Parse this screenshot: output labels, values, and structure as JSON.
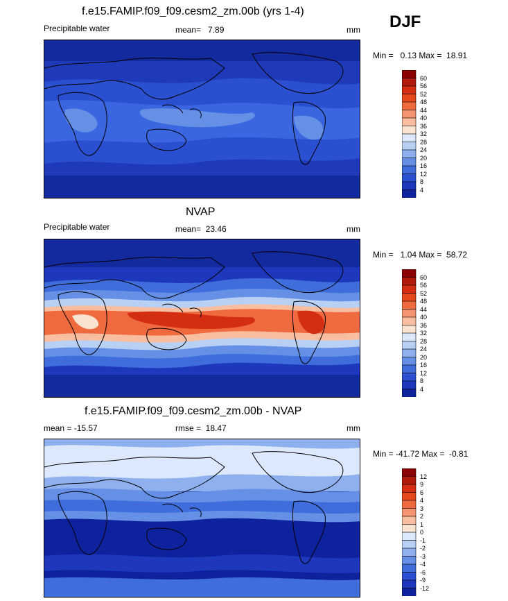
{
  "season": "DJF",
  "panels": [
    {
      "title": "f.e15.FAMIP.f09_f09.cesm2_zm.00b (yrs 1-4)",
      "left_label": "Precipitable water",
      "center_label": "mean=   7.89",
      "right_label": "mm",
      "minmax": "Min =   0.13 Max =  18.91",
      "map_colors": [
        "#1f3bb6",
        "#2a4fd0",
        "#2a4fd0",
        "#3a66e0"
      ],
      "colorbar": {
        "labels": [
          "60",
          "56",
          "52",
          "48",
          "44",
          "40",
          "36",
          "32",
          "28",
          "24",
          "20",
          "16",
          "12",
          "8",
          "4"
        ],
        "colors": [
          "#8b0000",
          "#b01a0a",
          "#d42e12",
          "#e8481e",
          "#f06a40",
          "#f59470",
          "#f9bd9f",
          "#fbe3d2",
          "#dce8fb",
          "#b9d0f5",
          "#8fb0ef",
          "#6590e6",
          "#3f6ddb",
          "#2a4fd0",
          "#1d37bd",
          "#0f229e"
        ]
      }
    },
    {
      "title": "NVAP",
      "left_label": "Precipitable water",
      "center_label": "mean=  23.46",
      "right_label": "mm",
      "minmax": "Min =   1.04 Max =  58.72",
      "colorbar": {
        "labels": [
          "60",
          "56",
          "52",
          "48",
          "44",
          "40",
          "36",
          "32",
          "28",
          "24",
          "20",
          "16",
          "12",
          "8",
          "4"
        ],
        "colors": [
          "#8b0000",
          "#b01a0a",
          "#d42e12",
          "#e8481e",
          "#f06a40",
          "#f59470",
          "#f9bd9f",
          "#fbe3d2",
          "#dce8fb",
          "#b9d0f5",
          "#8fb0ef",
          "#6590e6",
          "#3f6ddb",
          "#2a4fd0",
          "#1d37bd",
          "#0f229e"
        ]
      }
    },
    {
      "title": "f.e15.FAMIP.f09_f09.cesm2_zm.00b - NVAP",
      "left_label": "mean = -15.57",
      "center_label": "rmse =  18.47",
      "right_label": "mm",
      "minmax": "Min = -41.72 Max =  -0.81",
      "colorbar": {
        "labels": [
          "12",
          "9",
          "6",
          "4",
          "3",
          "2",
          "1",
          "0",
          "-1",
          "-2",
          "-3",
          "-4",
          "-6",
          "-9",
          "-12"
        ],
        "colors": [
          "#8b0000",
          "#b01a0a",
          "#d42e12",
          "#e8481e",
          "#f06a40",
          "#f59470",
          "#f9bd9f",
          "#fbe3d2",
          "#dce8fb",
          "#b9d0f5",
          "#8fb0ef",
          "#6590e6",
          "#3f6ddb",
          "#2a4fd0",
          "#1d37bd",
          "#0f229e"
        ]
      }
    }
  ]
}
